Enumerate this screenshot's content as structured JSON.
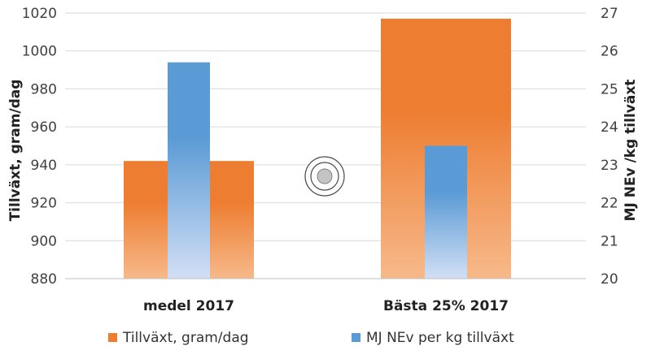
{
  "chart_data": {
    "type": "bar",
    "categories": [
      "medel 2017",
      "Bästa 25% 2017"
    ],
    "series": [
      {
        "name": "Tillväxt, gram/dag",
        "axis": "left",
        "values": [
          942,
          1017
        ],
        "color_top": "#ED7D31",
        "color_bottom": "#F7B98A"
      },
      {
        "name": "MJ NEv per kg tillväxt",
        "axis": "right",
        "values": [
          25.7,
          23.5
        ],
        "color_top": "#5B9BD5",
        "color_bottom": "#D2DFF5"
      }
    ],
    "ylabel": "Tillväxt, gram/dag",
    "y2label": "MJ NEv /kg tillväxt",
    "ylim": [
      880,
      1020
    ],
    "yticks": [
      880,
      900,
      920,
      940,
      960,
      980,
      1000,
      1020
    ],
    "y2lim": [
      20,
      27
    ],
    "y2ticks": [
      20,
      21,
      22,
      23,
      24,
      25,
      26,
      27
    ],
    "grid": true,
    "legend_position": "bottom"
  }
}
